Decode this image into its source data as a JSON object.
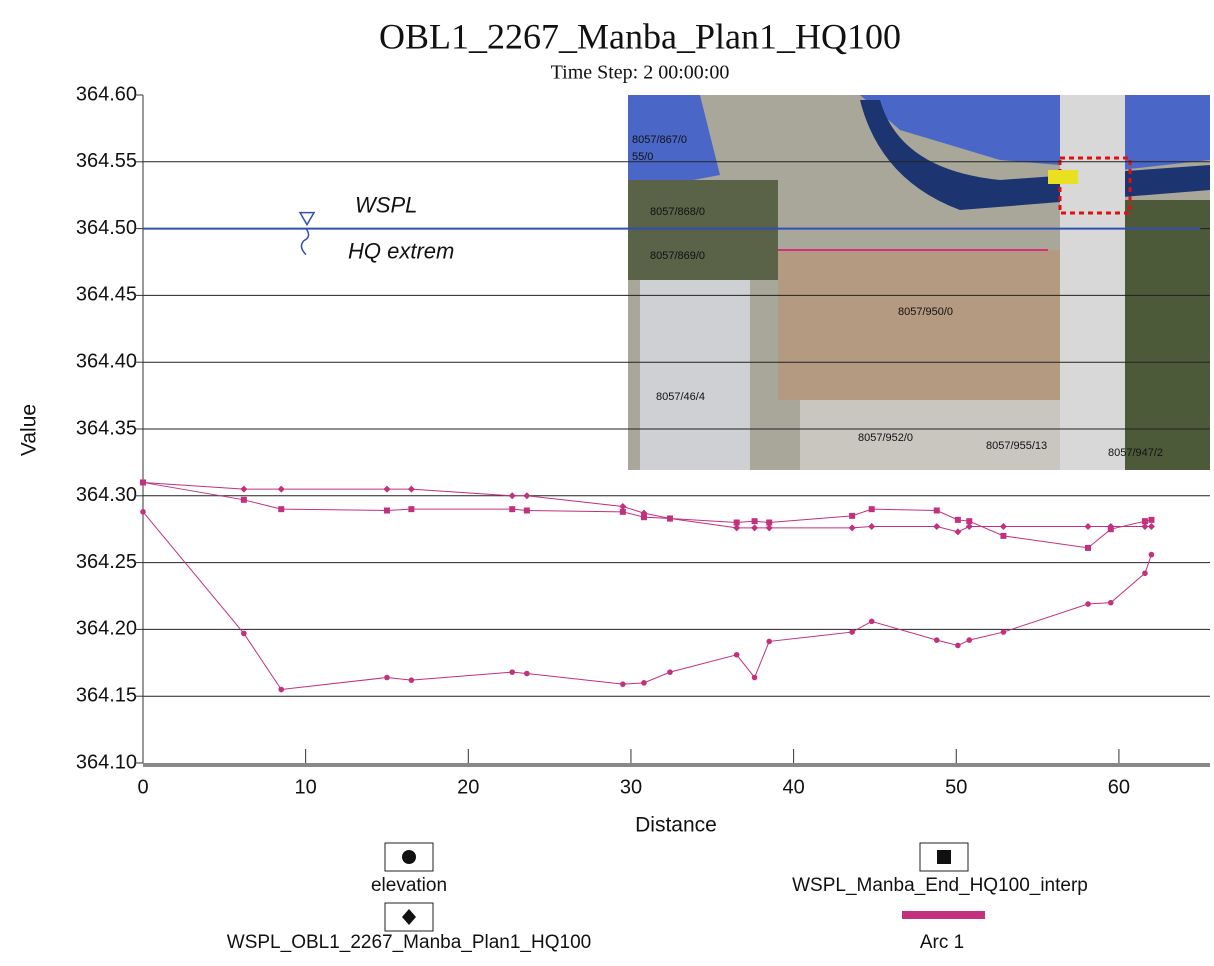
{
  "chart_data": {
    "type": "line",
    "title": "OBL1_2267_Manba_Plan1_HQ100",
    "subtitle": "Time Step: 2 00:00:00",
    "x_label": "Distance",
    "y_label": "Value",
    "xlim": [
      0,
      65.6
    ],
    "xticks": [
      0,
      10,
      20,
      30,
      40,
      50,
      60
    ],
    "ylim": [
      364.1,
      364.6
    ],
    "yticks": [
      {
        "value": 364.1,
        "label": "364.10"
      },
      364.15,
      {
        "value": 364.2,
        "label": "364.20"
      },
      364.25,
      {
        "value": 364.3,
        "label": "364.30"
      },
      364.35,
      {
        "value": 364.4,
        "label": "364.40"
      },
      364.45,
      {
        "value": 364.5,
        "label": "364.50"
      },
      364.55,
      {
        "value": 364.6,
        "label": "364.60"
      }
    ],
    "grid": true,
    "x": [
      0,
      6.2,
      8.5,
      15,
      16.5,
      22.7,
      23.6,
      29.5,
      30.8,
      32.4,
      36.5,
      37.6,
      38.5,
      43.6,
      44.8,
      48.8,
      50.1,
      50.8,
      52.9,
      58.1,
      59.5,
      61.6,
      62
    ],
    "series": [
      {
        "name": "elevation",
        "color": "#c2307e",
        "marker": "circle",
        "values": [
          364.288,
          364.197,
          364.155,
          364.164,
          364.162,
          364.168,
          364.167,
          364.159,
          364.16,
          364.168,
          364.181,
          364.164,
          364.191,
          364.198,
          364.206,
          364.192,
          364.188,
          364.192,
          364.198,
          364.219,
          364.22,
          364.242,
          364.256
        ]
      },
      {
        "name": "WSPL_Manba_End_HQ100_interp",
        "color": "#c2307e",
        "marker": "square",
        "values": [
          364.31,
          364.297,
          364.29,
          364.289,
          364.29,
          364.29,
          364.289,
          364.288,
          364.284,
          364.283,
          364.28,
          364.281,
          364.28,
          364.285,
          364.29,
          364.289,
          364.282,
          364.281,
          364.27,
          364.261,
          364.275,
          364.281,
          364.282
        ]
      },
      {
        "name": "WSPL_OBL1_2267_Manba_Plan1_HQ100",
        "color": "#c2307e",
        "marker": "diamond",
        "values": [
          364.31,
          364.305,
          364.305,
          364.305,
          364.305,
          364.3,
          364.3,
          364.292,
          364.287,
          364.283,
          364.276,
          364.276,
          364.276,
          364.276,
          364.277,
          364.277,
          364.273,
          364.277,
          364.277,
          364.277,
          364.277,
          364.277,
          364.277
        ]
      }
    ],
    "arc": {
      "name": "Arc 1",
      "color": "#c2307e"
    },
    "annotation": {
      "level": 364.5,
      "color": "#3050b0",
      "lines": [
        "WSPL",
        "HQ extrem"
      ]
    },
    "inset": {
      "labels": [
        "8057/867/0",
        "55/0",
        "8057/868/0",
        "8057/869/0",
        "8057/950/0",
        "8057/46/4",
        "8057/952/0",
        "8057/955/13",
        "8057/947/2"
      ]
    }
  }
}
